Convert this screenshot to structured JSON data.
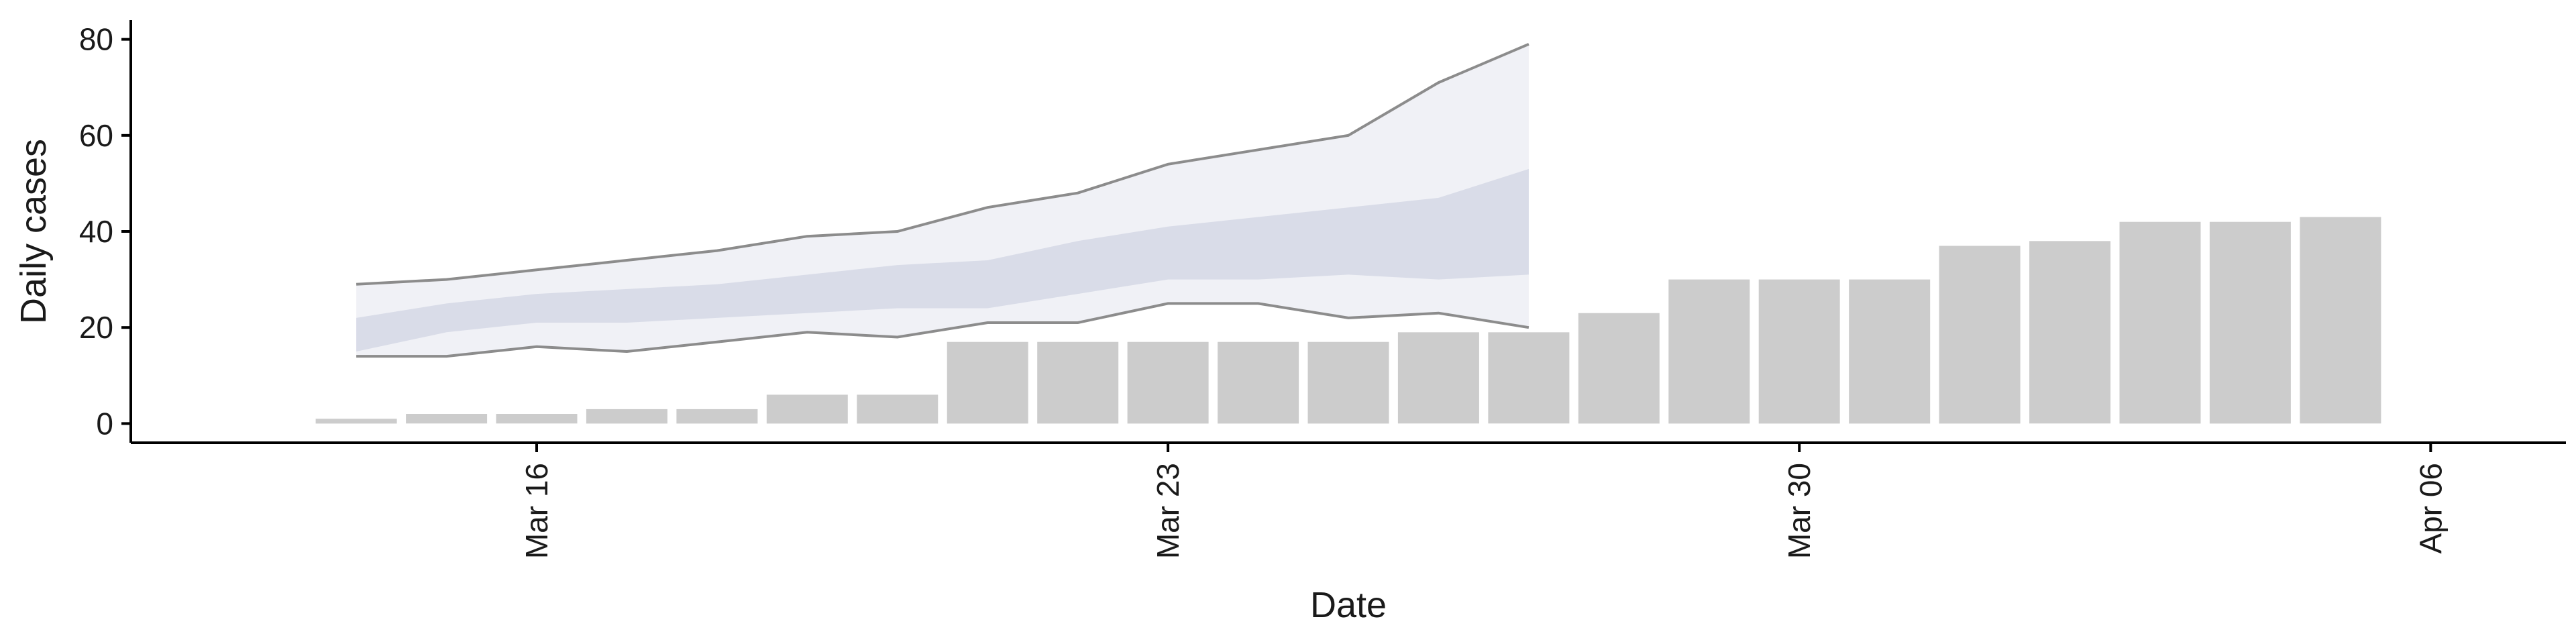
{
  "chart_data": {
    "type": "bar",
    "xlabel": "Date",
    "ylabel": "Daily cases",
    "x_range": [
      "2020-03-12",
      "2020-04-08"
    ],
    "ylim": [
      -4,
      84
    ],
    "y_ticks": [
      0,
      20,
      40,
      60,
      80
    ],
    "x_ticks": [
      {
        "date": "2020-03-16",
        "label": "Mar 16"
      },
      {
        "date": "2020-03-23",
        "label": "Mar 23"
      },
      {
        "date": "2020-03-30",
        "label": "Mar 30"
      },
      {
        "date": "2020-04-06",
        "label": "Apr 06"
      }
    ],
    "grid": false,
    "bar_color": "#cccccc",
    "bars": [
      {
        "date": "2020-03-14",
        "value": 1
      },
      {
        "date": "2020-03-15",
        "value": 2
      },
      {
        "date": "2020-03-16",
        "value": 2
      },
      {
        "date": "2020-03-17",
        "value": 3
      },
      {
        "date": "2020-03-18",
        "value": 3
      },
      {
        "date": "2020-03-19",
        "value": 6
      },
      {
        "date": "2020-03-20",
        "value": 6
      },
      {
        "date": "2020-03-21",
        "value": 17
      },
      {
        "date": "2020-03-22",
        "value": 17
      },
      {
        "date": "2020-03-23",
        "value": 17
      },
      {
        "date": "2020-03-24",
        "value": 17
      },
      {
        "date": "2020-03-25",
        "value": 17
      },
      {
        "date": "2020-03-26",
        "value": 19
      },
      {
        "date": "2020-03-27",
        "value": 19
      },
      {
        "date": "2020-03-28",
        "value": 23
      },
      {
        "date": "2020-03-29",
        "value": 30
      },
      {
        "date": "2020-03-30",
        "value": 30
      },
      {
        "date": "2020-03-31",
        "value": 30
      },
      {
        "date": "2020-04-01",
        "value": 37
      },
      {
        "date": "2020-04-02",
        "value": 38
      },
      {
        "date": "2020-04-03",
        "value": 42
      },
      {
        "date": "2020-04-04",
        "value": 42
      },
      {
        "date": "2020-04-05",
        "value": 43
      }
    ],
    "forecast_ribbon": {
      "dates": [
        "2020-03-14.5",
        "2020-03-15.5",
        "2020-03-16.5",
        "2020-03-17.5",
        "2020-03-18.5",
        "2020-03-19.5",
        "2020-03-20.5",
        "2020-03-21.5",
        "2020-03-22.5",
        "2020-03-23.5",
        "2020-03-24.5",
        "2020-03-25.5",
        "2020-03-26.5",
        "2020-03-27.5"
      ],
      "outer_lower": [
        14,
        14,
        16,
        15,
        17,
        19,
        18,
        21,
        21,
        25,
        25,
        22,
        23,
        20
      ],
      "outer_upper": [
        29,
        30,
        32,
        34,
        36,
        39,
        40,
        45,
        48,
        54,
        57,
        60,
        71,
        79
      ],
      "inner_lower": [
        15,
        19,
        21,
        21,
        22,
        23,
        24,
        24,
        27,
        30,
        30,
        31,
        30,
        31
      ],
      "inner_upper": [
        22,
        25,
        27,
        28,
        29,
        31,
        33,
        34,
        38,
        41,
        43,
        45,
        47,
        53
      ],
      "outer_fill": "#eeeff5",
      "inner_fill": "#c9cfe0",
      "outline_color": "#8c8c8c"
    }
  }
}
